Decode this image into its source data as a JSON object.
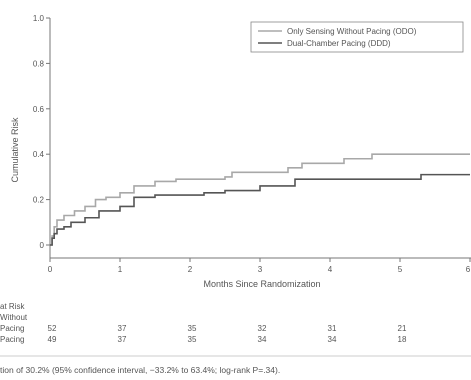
{
  "chart_data": {
    "type": "line",
    "ylabel": "Cumulative Risk",
    "xlabel": "Months Since Randomization",
    "xlim": [
      0,
      6
    ],
    "ylim": [
      0,
      1.0
    ],
    "xticks": [
      0,
      1,
      2,
      3,
      4,
      5,
      6
    ],
    "xtick_labels": [
      "0",
      "1",
      "2",
      "3",
      "4",
      "5",
      "6"
    ],
    "yticks": [
      0,
      0.2,
      0.4,
      0.6,
      0.8,
      1.0
    ],
    "ytick_labels": [
      "0",
      "0.2",
      "0.4",
      "0.6",
      "0.8",
      "1.0"
    ],
    "grid": false,
    "legend_position": "top-right",
    "series": [
      {
        "name": "Only Sensing Without Pacing (ODO)",
        "color": "#a8a8a8",
        "points": [
          [
            0,
            0
          ],
          [
            0.03,
            0.04
          ],
          [
            0.06,
            0.08
          ],
          [
            0.1,
            0.11
          ],
          [
            0.2,
            0.13
          ],
          [
            0.35,
            0.15
          ],
          [
            0.5,
            0.17
          ],
          [
            0.65,
            0.2
          ],
          [
            0.8,
            0.21
          ],
          [
            1.0,
            0.23
          ],
          [
            1.2,
            0.26
          ],
          [
            1.5,
            0.28
          ],
          [
            1.8,
            0.29
          ],
          [
            2.5,
            0.3
          ],
          [
            2.6,
            0.32
          ],
          [
            3.2,
            0.32
          ],
          [
            3.4,
            0.34
          ],
          [
            3.6,
            0.36
          ],
          [
            4.2,
            0.38
          ],
          [
            4.6,
            0.4
          ],
          [
            6,
            0.4
          ]
        ]
      },
      {
        "name": "Dual-Chamber Pacing (DDD)",
        "color": "#555555",
        "points": [
          [
            0,
            0
          ],
          [
            0.03,
            0.03
          ],
          [
            0.06,
            0.05
          ],
          [
            0.1,
            0.07
          ],
          [
            0.2,
            0.08
          ],
          [
            0.3,
            0.1
          ],
          [
            0.5,
            0.12
          ],
          [
            0.7,
            0.15
          ],
          [
            1.0,
            0.17
          ],
          [
            1.2,
            0.21
          ],
          [
            1.5,
            0.22
          ],
          [
            2.2,
            0.23
          ],
          [
            2.5,
            0.24
          ],
          [
            3.0,
            0.26
          ],
          [
            3.5,
            0.29
          ],
          [
            4.0,
            0.29
          ],
          [
            4.5,
            0.29
          ],
          [
            5.0,
            0.29
          ],
          [
            5.3,
            0.31
          ],
          [
            6,
            0.31
          ]
        ]
      }
    ],
    "risk_table": {
      "header": [
        "at Risk",
        "Without"
      ],
      "rows": [
        {
          "label": "Pacing",
          "values": [
            "52",
            "37",
            "35",
            "32",
            "31",
            "21"
          ]
        },
        {
          "label": "Pacing",
          "values": [
            "49",
            "37",
            "35",
            "34",
            "34",
            "18"
          ]
        }
      ]
    },
    "footnote": "tion of 30.2% (95% confidence interval, −33.2% to 63.4%; log-rank P=.34)."
  }
}
